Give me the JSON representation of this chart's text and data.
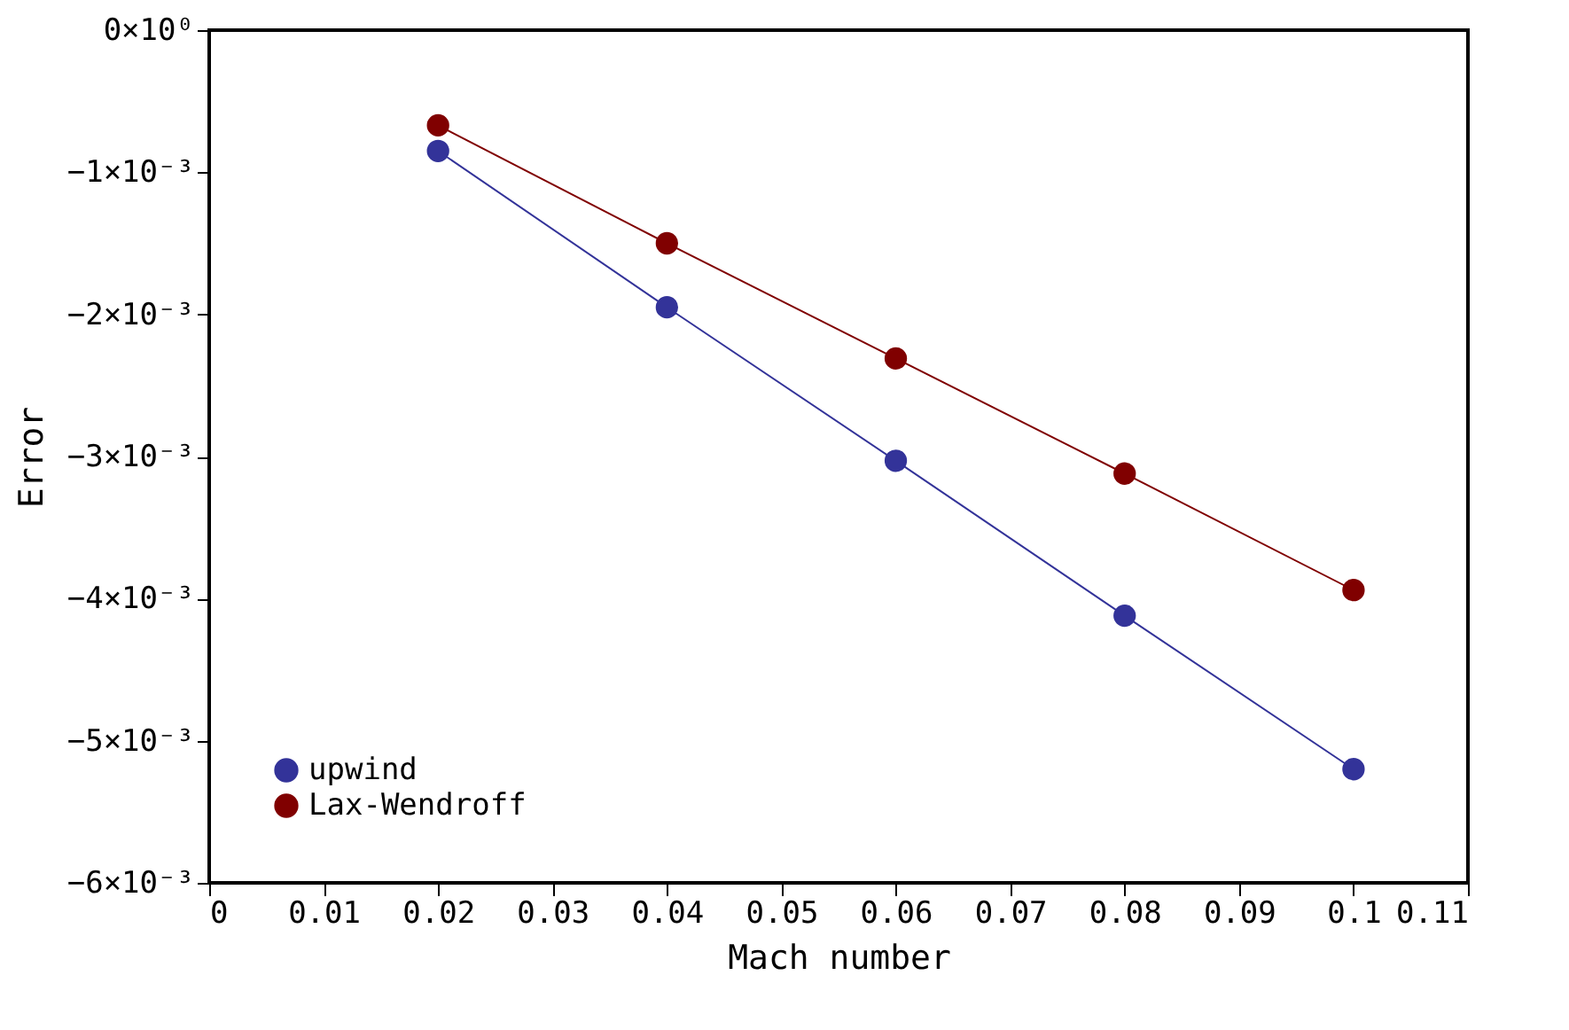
{
  "chart_data": {
    "type": "line",
    "xlabel": "Mach number",
    "ylabel": "Error",
    "x": [
      0.02,
      0.04,
      0.06,
      0.08,
      0.1
    ],
    "series": [
      {
        "name": "upwind",
        "color": "#333399",
        "values": [
          -0.00085,
          -0.00195,
          -0.00303,
          -0.00412,
          -0.0052
        ]
      },
      {
        "name": "Lax-Wendroff",
        "color": "#800000",
        "values": [
          -0.00067,
          -0.0015,
          -0.00231,
          -0.00312,
          -0.00394
        ]
      }
    ],
    "xlim": [
      0,
      0.11
    ],
    "xticks": [
      0,
      0.01,
      0.02,
      0.03,
      0.04,
      0.05,
      0.06,
      0.07,
      0.08,
      0.09,
      0.1,
      0.11
    ],
    "ylim": [
      -0.006,
      0
    ],
    "yticks": [
      {
        "value": -0.006,
        "label": "−6×10⁻³"
      },
      {
        "value": -0.005,
        "label": "−5×10⁻³"
      },
      {
        "value": -0.004,
        "label": "−4×10⁻³"
      },
      {
        "value": -0.003,
        "label": "−3×10⁻³"
      },
      {
        "value": -0.002,
        "label": "−2×10⁻³"
      },
      {
        "value": -0.001,
        "label": "−1×10⁻³"
      },
      {
        "value": 0,
        "label": "0×10⁰"
      }
    ],
    "legend": "bottom left",
    "marker": "circle",
    "line_style": "solid",
    "grid": false
  }
}
